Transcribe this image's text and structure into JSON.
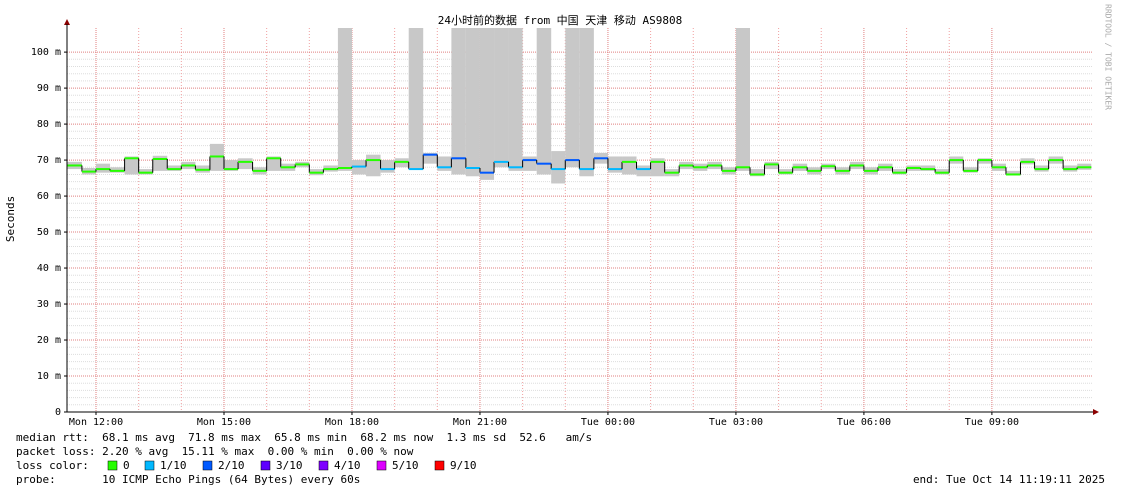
{
  "chart_data": {
    "type": "smokeping",
    "title": "24小时前的数据 from 中国 天津 移动 AS9808",
    "y_label": "Seconds",
    "watermark": "RRDTOOL / TOBI OETIKER",
    "xlim": [
      11.32,
      35.37
    ],
    "xticks": [
      {
        "value": 12,
        "label": "Mon 12:00"
      },
      {
        "value": 15,
        "label": "Mon 15:00"
      },
      {
        "value": 18,
        "label": "Mon 18:00"
      },
      {
        "value": 21,
        "label": "Mon 21:00"
      },
      {
        "value": 24,
        "label": "Tue 00:00"
      },
      {
        "value": 27,
        "label": "Tue 03:00"
      },
      {
        "value": 30,
        "label": "Tue 06:00"
      },
      {
        "value": 33,
        "label": "Tue 09:00"
      }
    ],
    "ylim": [
      0,
      106.7
    ],
    "yticks": [
      0,
      {
        "value": 10,
        "label": "10 m"
      },
      {
        "value": 20,
        "label": "20 m"
      },
      {
        "value": 30,
        "label": "30 m"
      },
      {
        "value": 40,
        "label": "40 m"
      },
      {
        "value": 50,
        "label": "50 m"
      },
      {
        "value": 60,
        "label": "60 m"
      },
      {
        "value": 70,
        "label": "70 m"
      },
      {
        "value": 80,
        "label": "80 m"
      },
      {
        "value": 90,
        "label": "90 m"
      },
      {
        "value": 100,
        "label": "100 m"
      }
    ],
    "grid": true,
    "x": [
      11.33,
      11.67,
      12,
      12.33,
      12.67,
      13,
      13.33,
      13.67,
      14,
      14.33,
      14.67,
      15,
      15.33,
      15.67,
      16,
      16.33,
      16.67,
      17,
      17.33,
      17.67,
      18,
      18.33,
      18.67,
      19,
      19.33,
      19.67,
      20,
      20.33,
      20.67,
      21,
      21.33,
      21.67,
      22,
      22.33,
      22.67,
      23,
      23.33,
      23.67,
      24,
      24.33,
      24.67,
      25,
      25.33,
      25.67,
      26,
      26.33,
      26.67,
      27,
      27.33,
      27.67,
      28,
      28.33,
      28.67,
      29,
      29.33,
      29.67,
      30,
      30.33,
      30.67,
      31,
      31.33,
      31.67,
      32,
      32.33,
      32.67,
      33,
      33.33,
      33.67,
      34,
      34.33,
      34.67,
      35
    ],
    "median": [
      68.5,
      66.8,
      67.5,
      67,
      70.5,
      66.5,
      70.3,
      67.5,
      68.5,
      67.3,
      71,
      67.5,
      69.5,
      67,
      70.5,
      68,
      68.8,
      66.5,
      67.5,
      67.8,
      68.2,
      70,
      67.5,
      69.5,
      67.5,
      71.5,
      68,
      70.5,
      67.8,
      66.5,
      69.5,
      68,
      70,
      69,
      67.5,
      70,
      67.5,
      70.5,
      67.5,
      69.5,
      67.5,
      69.5,
      66.5,
      68.5,
      68,
      68.5,
      67,
      68,
      66,
      68.8,
      66.5,
      68,
      67,
      68.3,
      67,
      68.5,
      67,
      68,
      66.5,
      67.8,
      67.5,
      66.5,
      70,
      67,
      70,
      68,
      66,
      69.5,
      67.5,
      70,
      67.5,
      68
    ],
    "max": [
      69.5,
      67.8,
      69,
      68,
      71,
      67.5,
      71.2,
      68.5,
      69.5,
      68.5,
      74.5,
      70,
      70.5,
      68,
      71,
      69,
      69.5,
      67.5,
      68.5,
      106.7,
      70,
      71.5,
      70,
      70.5,
      106.7,
      72,
      71,
      106.7,
      106.7,
      106.7,
      106.7,
      106.7,
      71,
      106.7,
      72.5,
      106.7,
      106.7,
      72,
      71,
      71,
      68.5,
      70.5,
      67.5,
      69.5,
      69,
      69.5,
      68,
      106.7,
      67.5,
      69.5,
      67.5,
      69,
      68,
      69,
      68,
      69.5,
      68,
      69,
      67.5,
      68.5,
      68.5,
      67.5,
      71,
      68,
      70.5,
      69,
      67,
      70.5,
      68.5,
      71,
      68.5,
      69
    ],
    "min": [
      67.5,
      66,
      66.5,
      66.5,
      66,
      66,
      67,
      67,
      67.5,
      66.5,
      67,
      67,
      67.5,
      66,
      67,
      67,
      68,
      65.8,
      66.8,
      67,
      66,
      65.5,
      66.5,
      68,
      67.5,
      69,
      67,
      66,
      65.5,
      64.5,
      68,
      67,
      67,
      66,
      63.5,
      68,
      65.5,
      69,
      66.5,
      66,
      65.5,
      65.5,
      65.5,
      67.5,
      67,
      67.5,
      66,
      67,
      65.5,
      67.5,
      66,
      67,
      66,
      67.5,
      66,
      67.5,
      66,
      67,
      66,
      67,
      67,
      66,
      69,
      66.5,
      69,
      67,
      65.8,
      68.8,
      66.8,
      69,
      66.8,
      67.3
    ],
    "loss": [
      0,
      0,
      0,
      0,
      0,
      0,
      0,
      0,
      0,
      0,
      0,
      0,
      0,
      0,
      0,
      0,
      0,
      0,
      0,
      0,
      1,
      0,
      1,
      0,
      1,
      2,
      1,
      2,
      1,
      2,
      1,
      1,
      2,
      2,
      1,
      2,
      1,
      2,
      1,
      0,
      1,
      0,
      0,
      0,
      0,
      0,
      0,
      0,
      0,
      0,
      0,
      0,
      0,
      0,
      0,
      0,
      0,
      0,
      0,
      0,
      0,
      0,
      0,
      0,
      0,
      0,
      0,
      0,
      0,
      0,
      0,
      0
    ],
    "smoke_color": "#c8c8c8",
    "loss_label": "loss color:",
    "loss_colors": [
      {
        "name": "0",
        "loss": 0,
        "color": "#26ff00"
      },
      {
        "name": "1/10",
        "loss": 1,
        "color": "#00b8ff"
      },
      {
        "name": "2/10",
        "loss": 2,
        "color": "#0059ff"
      },
      {
        "name": "3/10",
        "loss": 3,
        "color": "#5e00ff"
      },
      {
        "name": "4/10",
        "loss": 4,
        "color": "#7e00ff"
      },
      {
        "name": "5/10",
        "loss": 5,
        "color": "#dd00ff"
      },
      {
        "name": "9/10",
        "loss": 9,
        "color": "#ff0000"
      }
    ],
    "median_rtt": "median rtt:  68.1 ms avg  71.8 ms max  65.8 ms min  68.2 ms now  1.3 ms sd  52.6   am/s",
    "packet_loss": "packet loss: 2.20 % avg  15.11 % max  0.00 % min  0.00 % now",
    "probe": "probe:       10 ICMP Echo Pings (64 Bytes) every 60s",
    "end": "end: Tue Oct 14 11:19:11 2025"
  }
}
